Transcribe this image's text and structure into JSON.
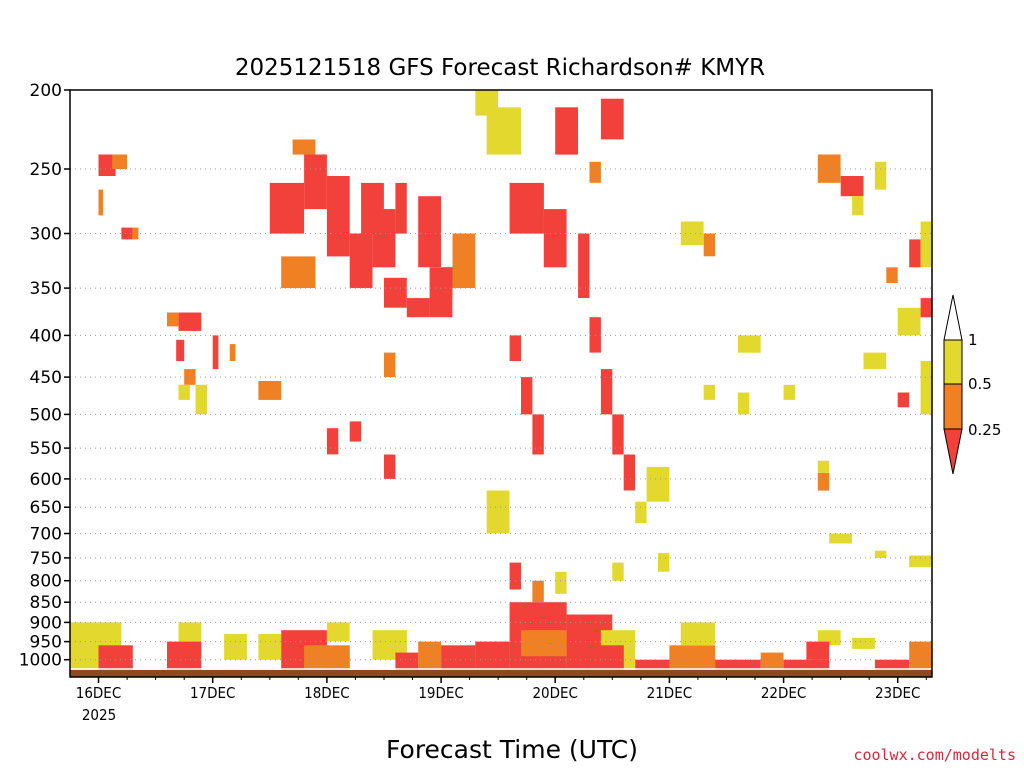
{
  "chart_data": {
    "type": "heatmap",
    "title": "2025121518 GFS Forecast Richardson# KMYR",
    "xlabel": "Forecast Time (UTC)",
    "ylabel": "",
    "y_scale": "log-pressure (inverted)",
    "ylim_hpa": [
      1050,
      200
    ],
    "y_ticks": [
      200,
      250,
      300,
      350,
      400,
      450,
      500,
      550,
      600,
      650,
      700,
      750,
      800,
      850,
      900,
      950,
      1000
    ],
    "x_ticks": [
      "16DEC",
      "17DEC",
      "18DEC",
      "19DEC",
      "20DEC",
      "21DEC",
      "22DEC",
      "23DEC"
    ],
    "x_year_label": "2025",
    "xlim_days": [
      -0.25,
      7.3
    ],
    "grid": "dotted horizontal at each pressure level",
    "legend": {
      "placement": "right",
      "levels": [
        "1",
        "0.5",
        "0.25"
      ],
      "bins": [
        {
          "range": "> 1",
          "color": "#ffffff"
        },
        {
          "range": "0.5 - 1",
          "color": "#e3d82e"
        },
        {
          "range": "0.25 - 0.5",
          "color": "#ef8023"
        },
        {
          "range": "< 0.25",
          "color": "#f2413a"
        }
      ]
    },
    "cells": [
      [
        0.0,
        0.15,
        240,
        255,
        3
      ],
      [
        0.12,
        0.25,
        240,
        250,
        2
      ],
      [
        0.0,
        0.04,
        265,
        285,
        2
      ],
      [
        0.2,
        0.3,
        295,
        305,
        3
      ],
      [
        0.3,
        0.35,
        295,
        305,
        2
      ],
      [
        0.7,
        0.9,
        375,
        395,
        3
      ],
      [
        0.6,
        0.7,
        375,
        390,
        2
      ],
      [
        0.68,
        0.75,
        405,
        430,
        3
      ],
      [
        0.75,
        0.85,
        440,
        460,
        2
      ],
      [
        0.85,
        0.95,
        460,
        500,
        1
      ],
      [
        0.7,
        0.8,
        460,
        480,
        1
      ],
      [
        1.0,
        1.05,
        400,
        440,
        3
      ],
      [
        1.15,
        1.2,
        410,
        430,
        2
      ],
      [
        1.5,
        1.8,
        260,
        300,
        3
      ],
      [
        1.8,
        2.0,
        240,
        280,
        3
      ],
      [
        1.6,
        1.9,
        320,
        350,
        2
      ],
      [
        2.0,
        2.2,
        255,
        320,
        3
      ],
      [
        2.2,
        2.4,
        300,
        350,
        3
      ],
      [
        2.4,
        2.6,
        280,
        330,
        3
      ],
      [
        2.3,
        2.5,
        260,
        300,
        3
      ],
      [
        2.6,
        2.7,
        260,
        300,
        3
      ],
      [
        2.8,
        3.0,
        270,
        330,
        3
      ],
      [
        2.5,
        2.7,
        340,
        370,
        3
      ],
      [
        2.9,
        3.1,
        330,
        380,
        3
      ],
      [
        1.7,
        1.9,
        230,
        240,
        2
      ],
      [
        2.7,
        2.9,
        360,
        380,
        3
      ],
      [
        1.4,
        1.6,
        455,
        480,
        2
      ],
      [
        3.0,
        3.1,
        330,
        360,
        3
      ],
      [
        2.5,
        2.6,
        420,
        450,
        2
      ],
      [
        3.1,
        3.3,
        300,
        350,
        2
      ],
      [
        3.3,
        3.5,
        200,
        215,
        1
      ],
      [
        3.4,
        3.7,
        210,
        240,
        1
      ],
      [
        3.6,
        3.9,
        260,
        300,
        3
      ],
      [
        3.9,
        4.1,
        280,
        330,
        3
      ],
      [
        3.6,
        3.7,
        400,
        430,
        3
      ],
      [
        3.7,
        3.8,
        450,
        500,
        3
      ],
      [
        3.8,
        3.9,
        500,
        560,
        3
      ],
      [
        4.0,
        4.2,
        210,
        240,
        3
      ],
      [
        4.4,
        4.6,
        205,
        230,
        3
      ],
      [
        4.3,
        4.4,
        245,
        260,
        2
      ],
      [
        4.2,
        4.3,
        300,
        360,
        3
      ],
      [
        4.3,
        4.4,
        380,
        420,
        3
      ],
      [
        4.4,
        4.5,
        440,
        500,
        3
      ],
      [
        4.5,
        4.6,
        500,
        560,
        3
      ],
      [
        4.6,
        4.7,
        560,
        620,
        3
      ],
      [
        4.8,
        5.0,
        580,
        640,
        1
      ],
      [
        4.7,
        4.8,
        640,
        680,
        1
      ],
      [
        2.0,
        2.1,
        520,
        560,
        3
      ],
      [
        2.5,
        2.6,
        560,
        600,
        3
      ],
      [
        2.2,
        2.3,
        510,
        540,
        3
      ],
      [
        6.5,
        6.7,
        255,
        270,
        3
      ],
      [
        6.3,
        6.5,
        240,
        260,
        2
      ],
      [
        6.6,
        6.7,
        270,
        285,
        1
      ],
      [
        6.8,
        6.9,
        245,
        265,
        1
      ],
      [
        7.1,
        7.2,
        305,
        330,
        3
      ],
      [
        7.2,
        7.3,
        290,
        330,
        1
      ],
      [
        7.2,
        7.3,
        360,
        380,
        3
      ],
      [
        7.0,
        7.2,
        370,
        400,
        1
      ],
      [
        7.0,
        7.1,
        470,
        490,
        3
      ],
      [
        7.2,
        7.3,
        430,
        500,
        1
      ],
      [
        6.7,
        6.9,
        420,
        440,
        1
      ],
      [
        6.3,
        6.4,
        590,
        620,
        2
      ],
      [
        6.3,
        6.4,
        570,
        590,
        1
      ],
      [
        6.0,
        6.1,
        460,
        480,
        1
      ],
      [
        5.3,
        5.4,
        300,
        320,
        2
      ],
      [
        5.1,
        5.3,
        290,
        310,
        1
      ],
      [
        5.6,
        5.8,
        400,
        420,
        1
      ],
      [
        5.3,
        5.4,
        460,
        480,
        1
      ],
      [
        5.6,
        5.7,
        470,
        500,
        1
      ],
      [
        6.9,
        7.0,
        330,
        345,
        2
      ],
      [
        3.4,
        3.6,
        620,
        700,
        1
      ],
      [
        3.6,
        3.7,
        760,
        820,
        3
      ],
      [
        3.8,
        3.9,
        800,
        850,
        2
      ],
      [
        4.0,
        4.1,
        780,
        830,
        1
      ],
      [
        4.5,
        4.6,
        760,
        800,
        1
      ],
      [
        4.9,
        5.0,
        740,
        780,
        1
      ],
      [
        6.4,
        6.6,
        700,
        720,
        1
      ],
      [
        6.8,
        6.9,
        735,
        750,
        1
      ],
      [
        7.1,
        7.3,
        745,
        770,
        1
      ]
    ],
    "surface_band": [
      [
        -0.25,
        0.2,
        900,
        1040,
        1
      ],
      [
        0.0,
        0.3,
        960,
        1040,
        3
      ],
      [
        0.6,
        0.9,
        950,
        1040,
        3
      ],
      [
        0.7,
        0.9,
        900,
        950,
        1
      ],
      [
        1.1,
        1.3,
        930,
        1000,
        1
      ],
      [
        1.4,
        1.6,
        930,
        1000,
        1
      ],
      [
        1.6,
        2.0,
        920,
        1040,
        3
      ],
      [
        1.8,
        2.2,
        960,
        1040,
        2
      ],
      [
        2.0,
        2.2,
        900,
        950,
        1
      ],
      [
        2.4,
        2.7,
        920,
        1000,
        1
      ],
      [
        2.8,
        3.0,
        950,
        1040,
        2
      ],
      [
        2.6,
        2.8,
        980,
        1040,
        3
      ],
      [
        3.0,
        3.3,
        960,
        1040,
        3
      ],
      [
        3.3,
        3.6,
        950,
        1040,
        3
      ],
      [
        3.6,
        4.1,
        850,
        1040,
        3
      ],
      [
        3.7,
        4.1,
        920,
        990,
        2
      ],
      [
        4.1,
        4.5,
        880,
        1040,
        3
      ],
      [
        4.4,
        4.7,
        920,
        1040,
        1
      ],
      [
        4.2,
        4.6,
        960,
        1040,
        3
      ],
      [
        4.7,
        5.1,
        1000,
        1040,
        3
      ],
      [
        5.0,
        5.4,
        960,
        1040,
        2
      ],
      [
        5.1,
        5.4,
        900,
        960,
        1
      ],
      [
        5.4,
        5.8,
        1000,
        1040,
        3
      ],
      [
        5.8,
        6.0,
        980,
        1040,
        2
      ],
      [
        6.0,
        6.4,
        1000,
        1040,
        3
      ],
      [
        6.3,
        6.5,
        920,
        960,
        1
      ],
      [
        6.6,
        6.8,
        940,
        970,
        1
      ],
      [
        6.8,
        7.1,
        1000,
        1040,
        3
      ],
      [
        7.1,
        7.3,
        950,
        1040,
        2
      ],
      [
        6.2,
        6.4,
        950,
        1000,
        3
      ]
    ],
    "terrain_color": "#8b4a22"
  },
  "credit": "coolwx.com/modelts"
}
